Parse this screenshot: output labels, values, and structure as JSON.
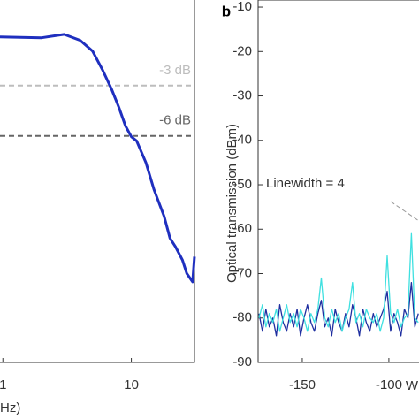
{
  "chart_data": [
    {
      "type": "line",
      "x_label": "Hz)",
      "log_x": true,
      "xlim": [
        0.95,
        31
      ],
      "xticks": [
        1,
        10
      ],
      "ylim": [
        -19.5,
        2.1
      ],
      "x": [
        0.95,
        2,
        3,
        4,
        5,
        6,
        7,
        8,
        9,
        10,
        11,
        13,
        15,
        18,
        20,
        22,
        25,
        27,
        30,
        31
      ],
      "series": [
        {
          "color": "#1f2fbf",
          "values": [
            -0.1,
            -0.15,
            0.05,
            -0.3,
            -0.95,
            -2.1,
            -3.2,
            -4.3,
            -5.4,
            -6.05,
            -6.3,
            -7.6,
            -9.2,
            -10.8,
            -12.1,
            -12.6,
            -13.4,
            -14.2,
            -14.7,
            -13.2
          ]
        }
      ],
      "reference_lines": [
        {
          "value": -3,
          "label": "-3 dB",
          "color": "#bdbdbd"
        },
        {
          "value": -6,
          "label": "-6 dB",
          "color": "#666666"
        }
      ]
    },
    {
      "type": "line",
      "panel_label": "b",
      "y_label": "Optical transmission (dBm)",
      "x_label": "W",
      "annotation": "Linewidth = 4",
      "xlim": [
        -175.5,
        -82.6
      ],
      "xticks": [
        -150,
        -100
      ],
      "ylim": [
        -90,
        -8.4
      ],
      "yticks": [
        -10,
        -20,
        -30,
        -40,
        -50,
        -60,
        -70,
        -80,
        -90
      ],
      "x": [
        -175,
        -173,
        -171,
        -169,
        -167,
        -165,
        -163,
        -161,
        -159,
        -157,
        -155,
        -153,
        -151,
        -149,
        -147,
        -145,
        -143,
        -141,
        -139,
        -137,
        -135,
        -133,
        -131,
        -129,
        -127,
        -125,
        -123,
        -121,
        -119,
        -117,
        -115,
        -113,
        -111,
        -109,
        -107,
        -105,
        -103,
        -101,
        -99,
        -97,
        -95,
        -93,
        -91,
        -89,
        -87,
        -85,
        -83
      ],
      "series": [
        {
          "color": "#1f2fa0",
          "values": [
            -79,
            -83,
            -78,
            -82,
            -80,
            -84,
            -77,
            -81,
            -83,
            -79,
            -82,
            -78,
            -84,
            -80,
            -77,
            -81,
            -83,
            -79,
            -76,
            -82,
            -80,
            -84,
            -78,
            -81,
            -83,
            -79,
            -82,
            -77,
            -80,
            -84,
            -78,
            -81,
            -83,
            -79,
            -82,
            -80,
            -78,
            -74,
            -83,
            -79,
            -81,
            -84,
            -78,
            -80,
            -72,
            -82,
            -79
          ]
        },
        {
          "color": "#3fe0e0",
          "values": [
            -80,
            -77,
            -82,
            -79,
            -81,
            -78,
            -83,
            -80,
            -77,
            -81,
            -79,
            -82,
            -78,
            -80,
            -83,
            -79,
            -81,
            -78,
            -71,
            -80,
            -82,
            -78,
            -81,
            -79,
            -83,
            -80,
            -78,
            -72,
            -81,
            -79,
            -82,
            -78,
            -80,
            -81,
            -79,
            -83,
            -80,
            -66,
            -79,
            -81,
            -78,
            -82,
            -80,
            -79,
            -61,
            -80,
            -81
          ]
        }
      ]
    }
  ]
}
